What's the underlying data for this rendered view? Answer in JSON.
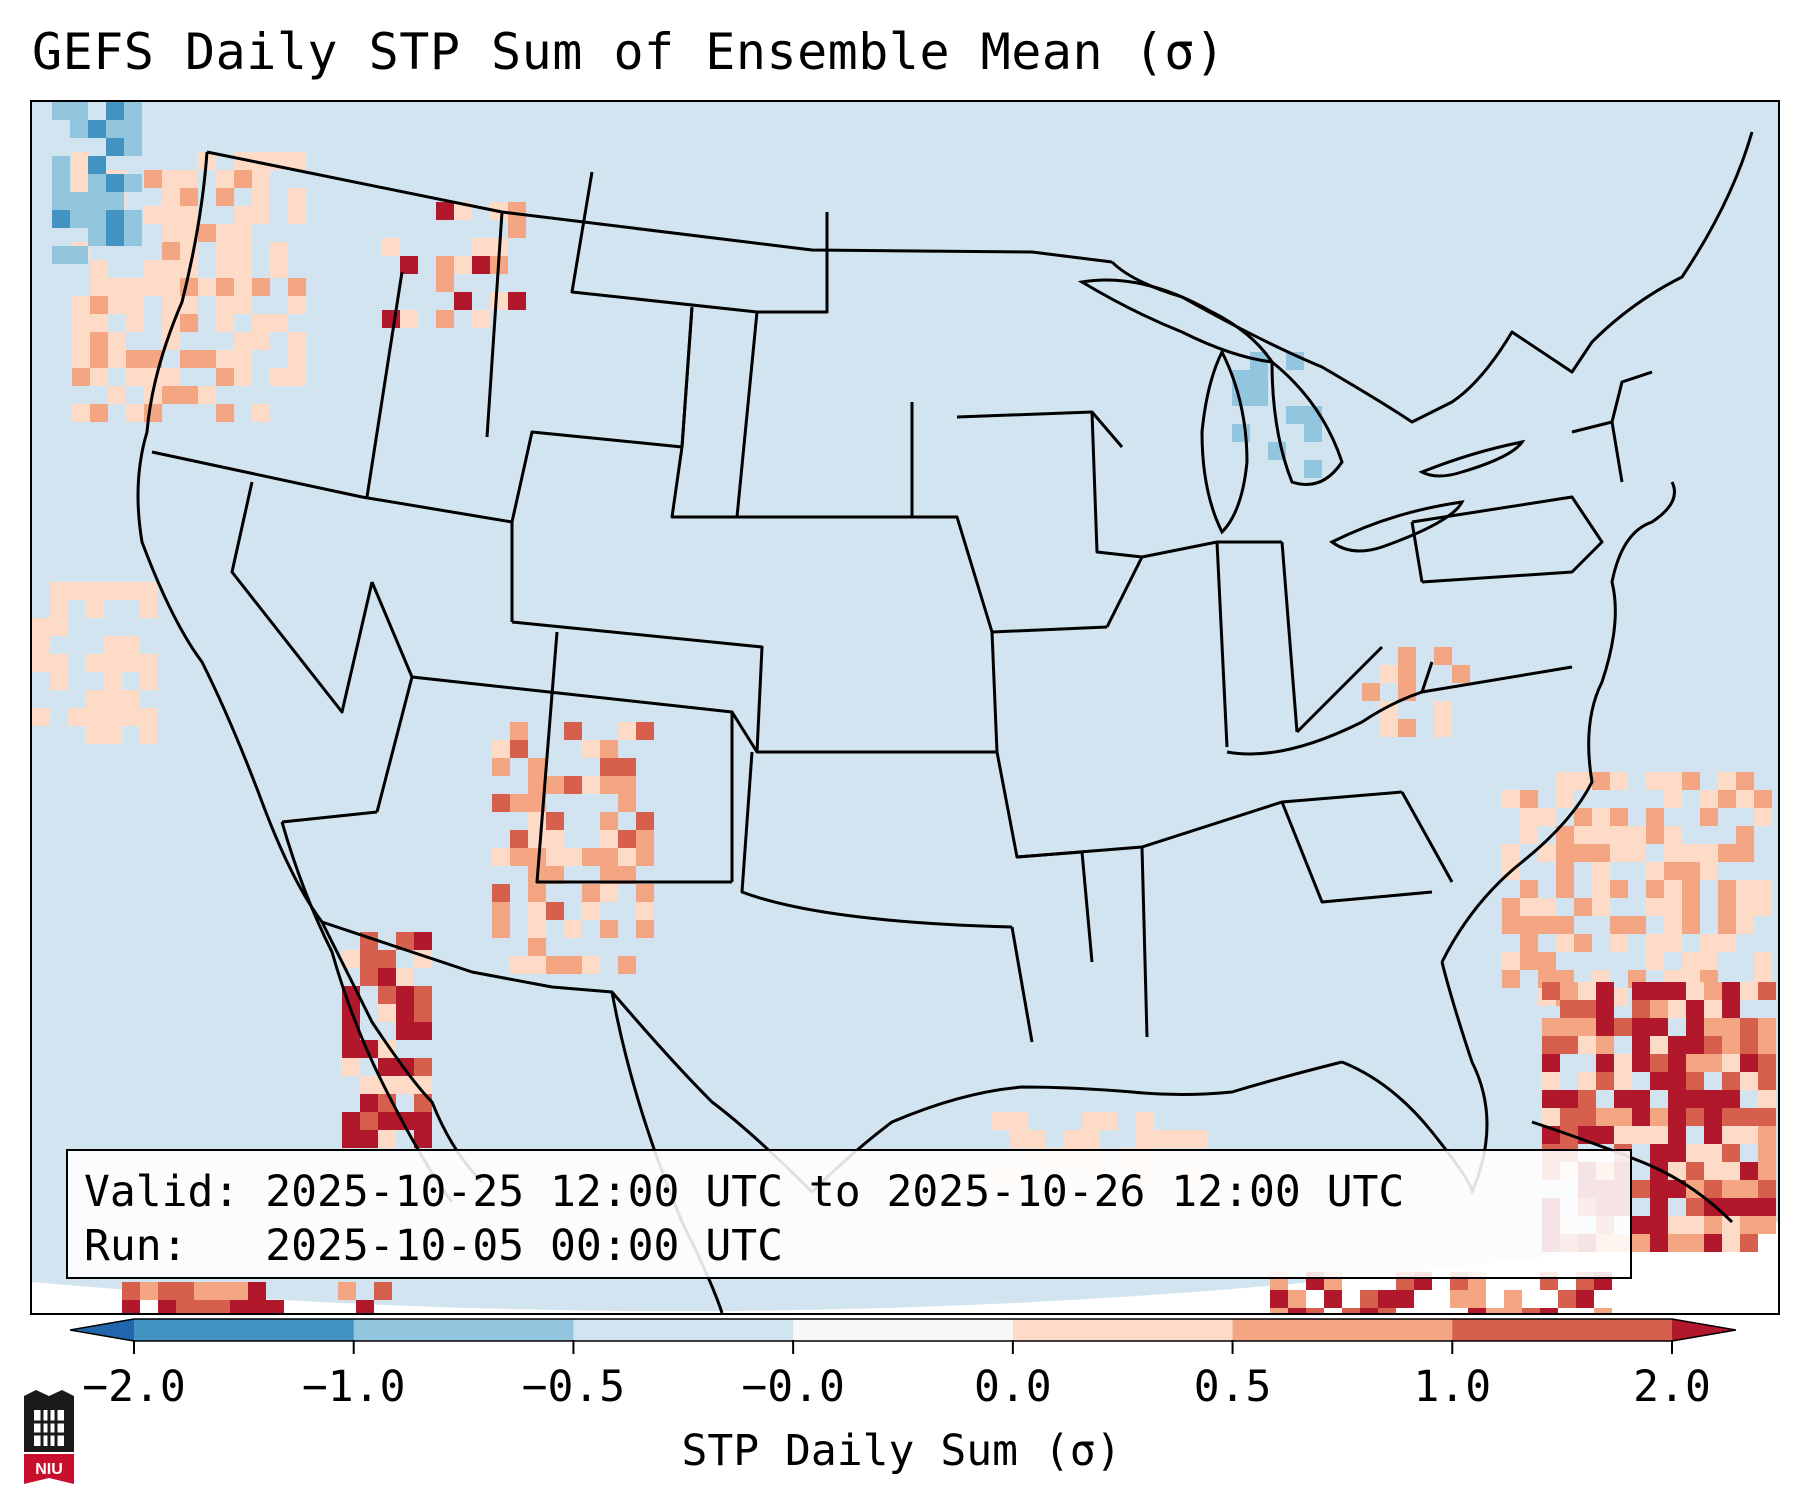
{
  "title": "GEFS Daily STP Sum of Ensemble Mean (σ)",
  "info": {
    "valid_line": "Valid: 2025-10-25 12:00 UTC to 2025-10-26 12:00 UTC",
    "run_line": "Run:   2025-10-05 00:00 UTC"
  },
  "colorbar": {
    "label": "STP Daily Sum (σ)",
    "ticks": [
      "−2.0",
      "−1.0",
      "−0.5",
      "−0.0",
      "0.0",
      "0.5",
      "1.0",
      "2.0"
    ],
    "bins": [
      {
        "range": "< -2.0",
        "color": "#2166ac"
      },
      {
        "range": "-2.0 to -1.0",
        "color": "#4393c3"
      },
      {
        "range": "-1.0 to -0.5",
        "color": "#92c5de"
      },
      {
        "range": "-0.5 to -0.0",
        "color": "#d1e5f0"
      },
      {
        "range": "-0.0 to 0.0",
        "color": "#f7f7f7"
      },
      {
        "range": "0.0 to 0.5",
        "color": "#fddbc7"
      },
      {
        "range": "0.5 to 1.0",
        "color": "#f4a582"
      },
      {
        "range": "1.0 to 2.0",
        "color": "#d6604d"
      },
      {
        "range": "> 2.0",
        "color": "#b2182b"
      }
    ],
    "extend": "both"
  },
  "map": {
    "region": "Contiguous United States",
    "background_color": "#d1e4ef",
    "borders": [
      "coastlines",
      "state lines",
      "country borders"
    ]
  },
  "logo": {
    "text": "NIU",
    "color": "#c8102e"
  }
}
